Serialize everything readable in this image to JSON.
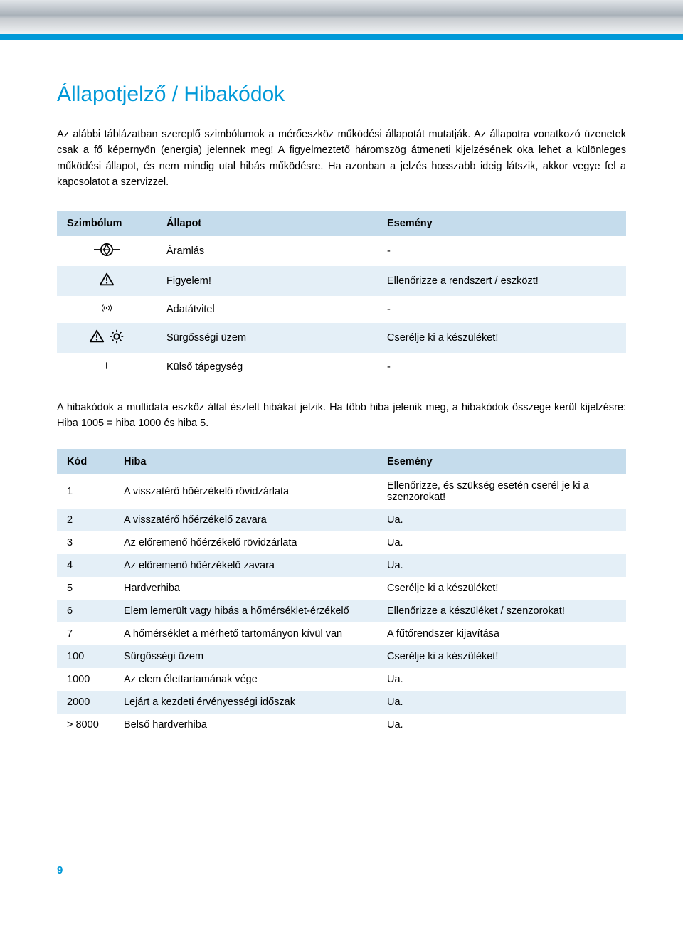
{
  "colors": {
    "accent": "#0099d8",
    "header_row": "#c5dcec",
    "row_alt": "#e4eff7",
    "row_base": "#ffffff",
    "text": "#000000"
  },
  "title": "Állapotjelző / Hibakódok",
  "intro": "Az alábbi táblázatban szereplő szimbólumok a mérőeszköz működési állapotát mutatják. Az állapotra vonatkozó üzenetek csak a fő képernyőn (energia) jelennek meg! A figyelmeztető háromszög átmeneti kijelzésének oka lehet a különleges működési állapot, és nem mindig utal hibás működésre. Ha azonban a jelzés hosszabb ideig látszik, akkor vegye fel a kapcsolatot a szervizzel.",
  "symbol_table": {
    "headers": {
      "symbol": "Szimbólum",
      "state": "Állapot",
      "event": "Esemény"
    },
    "rows": [
      {
        "icon": "flow",
        "state": "Áramlás",
        "event": "-"
      },
      {
        "icon": "warn",
        "state": "Figyelem!",
        "event": "Ellenőrizze a rendszert / eszközt!"
      },
      {
        "icon": "radio",
        "state": "Adatátvitel",
        "event": "-"
      },
      {
        "icon": "warn-gear",
        "state": "Sürgősségi üzem",
        "event": "Cserélje ki a készüléket!"
      },
      {
        "icon": "bar",
        "state": "Külső tápegység",
        "event": "-"
      }
    ]
  },
  "mid_text": "A hibakódok a multidata eszköz által észlelt hibákat jelzik. Ha több hiba jelenik meg, a hibakódok összege kerül kijelzésre: Hiba 1005 = hiba 1000 és hiba 5.",
  "error_table": {
    "headers": {
      "code": "Kód",
      "error": "Hiba",
      "event": "Esemény"
    },
    "rows": [
      {
        "code": "1",
        "error": "A visszatérő hőérzékelő rövidzárlata",
        "event": "Ellenőrizze, és szükség esetén cserél je ki a szenzorokat!"
      },
      {
        "code": "2",
        "error": "A visszatérő hőérzékelő zavara",
        "event": "Ua."
      },
      {
        "code": "3",
        "error": "Az előremenő hőérzékelő rövidzárlata",
        "event": "Ua."
      },
      {
        "code": "4",
        "error": "Az előremenő hőérzékelő zavara",
        "event": "Ua."
      },
      {
        "code": "5",
        "error": "Hardverhiba",
        "event": "Cserélje ki a készüléket!"
      },
      {
        "code": "6",
        "error": "Elem lemerült vagy hibás a hőmérséklet-érzékelő",
        "event": "Ellenőrizze a készüléket / szenzorokat!"
      },
      {
        "code": "7",
        "error": "A hőmérséklet a mérhető tartományon kívül van",
        "event": "A fűtőrendszer kijavítása"
      },
      {
        "code": "100",
        "error": "Sürgősségi üzem",
        "event": "Cserélje ki a készüléket!"
      },
      {
        "code": "1000",
        "error": "Az elem élettartamának vége",
        "event": "Ua."
      },
      {
        "code": "2000",
        "error": "Lejárt a kezdeti érvényességi időszak",
        "event": "Ua."
      },
      {
        "code": "> 8000",
        "error": "Belső hardverhiba",
        "event": "Ua."
      }
    ]
  },
  "page_number": "9"
}
